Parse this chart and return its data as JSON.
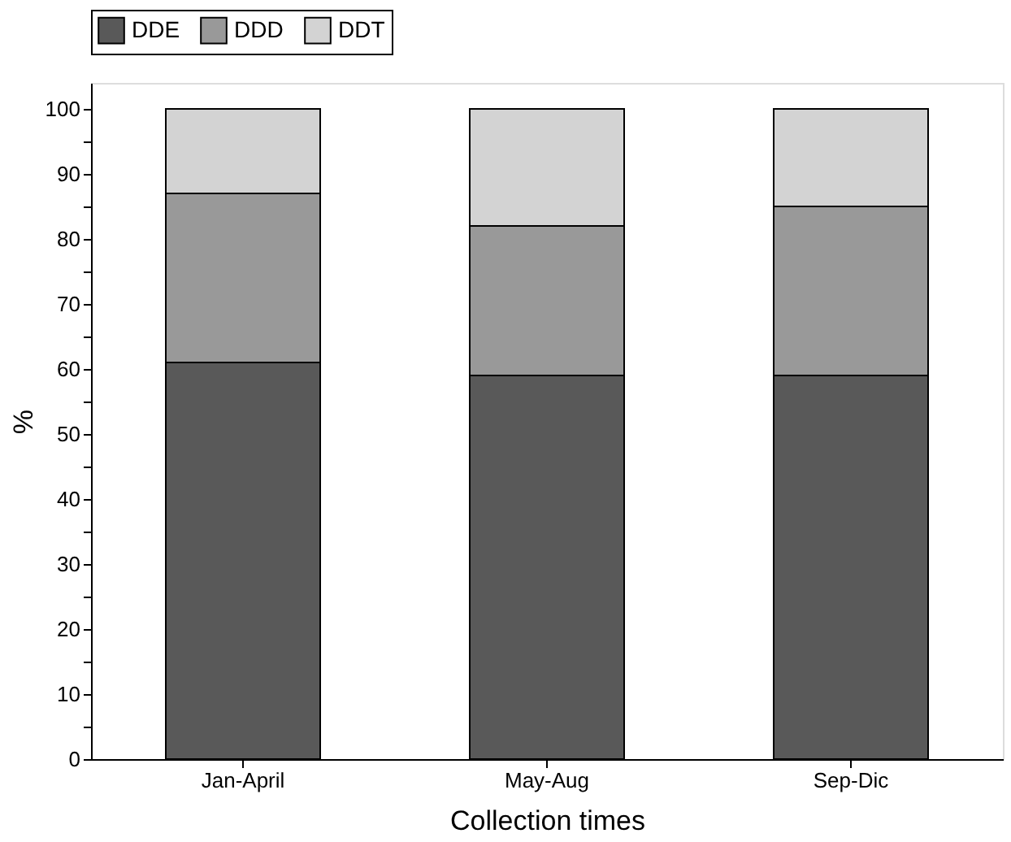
{
  "chart_data": {
    "type": "bar",
    "stacked": true,
    "xlabel": "Collection times",
    "ylabel": "%",
    "categories": [
      "Jan-April",
      "May-Aug",
      "Sep-Dic"
    ],
    "series": [
      {
        "name": "DDE",
        "color": "#595959",
        "values": [
          61,
          59,
          59
        ]
      },
      {
        "name": "DDD",
        "color": "#999999",
        "values": [
          26,
          23,
          26
        ]
      },
      {
        "name": "DDT",
        "color": "#d3d3d3",
        "values": [
          13,
          18,
          15
        ]
      }
    ],
    "ylim": [
      0,
      104
    ],
    "yticks": [
      0,
      {
        "value": 5,
        "label": null
      },
      10,
      {
        "value": 15,
        "label": null
      },
      20,
      {
        "value": 25,
        "label": null
      },
      30,
      {
        "value": 35,
        "label": null
      },
      40,
      {
        "value": 45,
        "label": null
      },
      50,
      {
        "value": 55,
        "label": null
      },
      60,
      {
        "value": 65,
        "label": null
      },
      70,
      {
        "value": 75,
        "label": null
      },
      80,
      {
        "value": 85,
        "label": null
      },
      90,
      {
        "value": 95,
        "label": null
      },
      100
    ],
    "grid": false,
    "legend": "top"
  }
}
